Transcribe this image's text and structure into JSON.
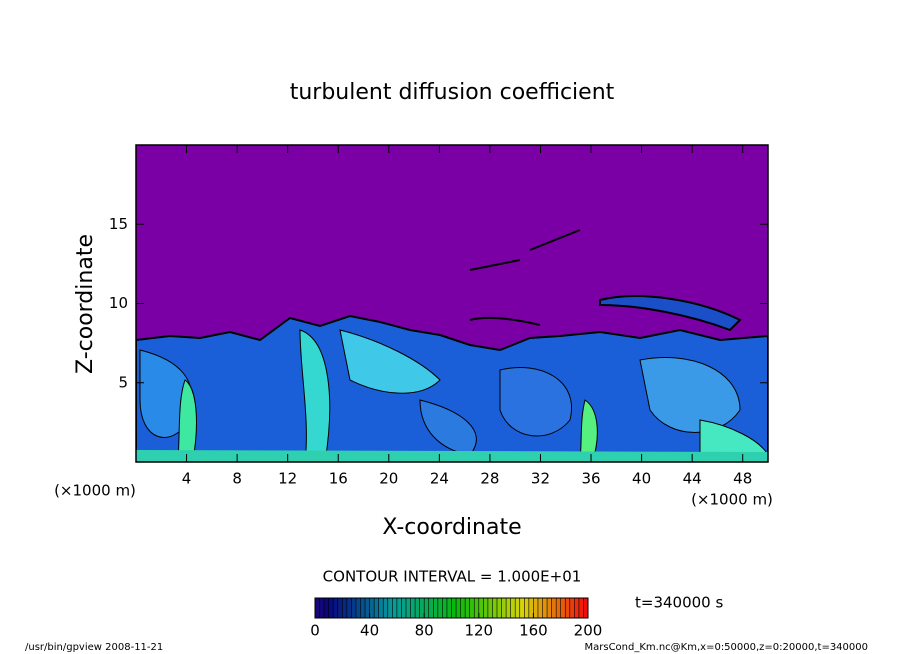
{
  "chart_data": {
    "type": "contour",
    "title": "turbulent diffusion coefficient",
    "x_label": "X-coordinate",
    "y_label": "Z-coordinate",
    "x_unit": "(×1000 m)",
    "y_unit": "(×1000 m)",
    "xlim": [
      0,
      50
    ],
    "xticks": [
      4,
      8,
      12,
      16,
      20,
      24,
      28,
      32,
      36,
      40,
      44,
      48
    ],
    "ylim": [
      0,
      20
    ],
    "yticks": [
      5,
      10,
      15
    ],
    "contour_interval_label": "CONTOUR INTERVAL = 1.000E+01",
    "time_label": "t=340000 s",
    "colorbar": {
      "lim": [
        0,
        200
      ],
      "ticks": [
        0,
        40,
        80,
        120,
        160,
        200
      ]
    },
    "footer_left": "/usr/bin/gpview   2008-11-21",
    "footer_right": "MarsCond_Km.nc@Km,x=0:50000,z=0:20000,t=340000"
  }
}
